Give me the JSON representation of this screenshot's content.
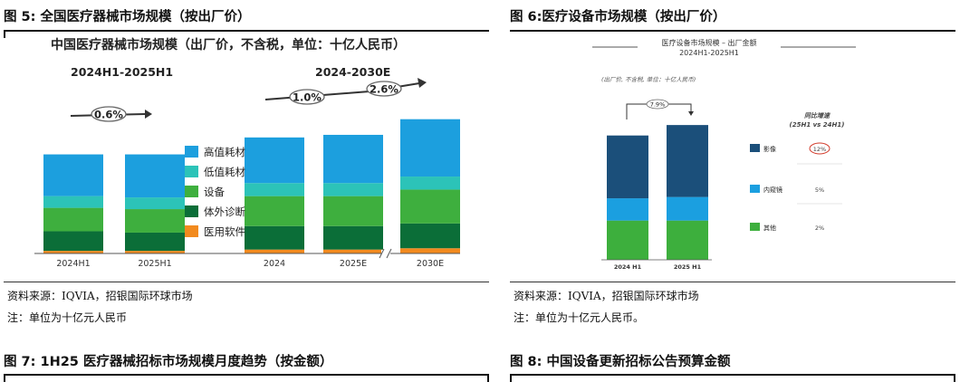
{
  "fig5": {
    "title": "图 5: 全国医疗器械市场规模（按出厂价）",
    "chart_title": "中国医疗器械市场规模（出厂价，不含税，单位：十亿人民币）",
    "subtitle_left": "2024H1-2025H1",
    "subtitle_right": "2024-2030E",
    "growth_labels": [
      "0.6%",
      "1.0%",
      "2.6%"
    ],
    "source": "资料来源：IQVIA，招银国际环球市场",
    "note": "注：单位为十亿元人民币"
  },
  "fig6": {
    "title": "图 6:医疗设备市场规模（按出厂价）",
    "chart_title_1": "医疗设备市场规模 – 出厂金额",
    "chart_title_2": "2024H1-2025H1",
    "unit_note": "(出厂价, 不含税, 单位：十亿人民币)",
    "growth_label": "7.9%",
    "growth_header_1": "同比增速",
    "growth_header_2": "(25H1 vs 24H1)",
    "source": "资料来源：IQVIA，招银国际环球市场",
    "note": "注：单位为十亿元人民币。"
  },
  "fig7": {
    "title": "图 7: 1H25 医疗器械招标市场规模月度趋势（按金额）"
  },
  "fig8": {
    "title": "图 8: 中国设备更新招标公告预算金额"
  },
  "chart_data": [
    {
      "type": "bar",
      "stacked": true,
      "categories": [
        "2024H1",
        "2025H1",
        "2024",
        "2025E",
        "2030E"
      ],
      "series": [
        {
          "name": "医用软件",
          "color": "#F28A1E",
          "values": [
            2,
            2,
            3,
            3,
            4
          ]
        },
        {
          "name": "体外诊断",
          "color": "#0B6E38",
          "values": [
            15,
            14,
            18,
            18,
            19
          ]
        },
        {
          "name": "设备",
          "color": "#3EAF3E",
          "values": [
            18,
            18,
            23,
            23,
            26
          ]
        },
        {
          "name": "低值耗材",
          "color": "#2CC3B8",
          "values": [
            9,
            9,
            10,
            10,
            10
          ]
        },
        {
          "name": "高值耗材",
          "color": "#1C9FDE",
          "values": [
            32,
            33,
            35,
            37,
            44
          ]
        }
      ],
      "ylim": [
        0,
        125
      ],
      "legend": "right-center"
    },
    {
      "type": "bar",
      "stacked": true,
      "categories": [
        "2024 H1",
        "2025 H1"
      ],
      "series": [
        {
          "name": "其他",
          "color": "#3DAF3D",
          "values": [
            30,
            30
          ],
          "growth": "2%"
        },
        {
          "name": "内窥镜",
          "color": "#1B9FE0",
          "values": [
            17,
            18
          ],
          "growth": "5%"
        },
        {
          "name": "影像",
          "color": "#1B4F7A",
          "values": [
            48,
            55
          ],
          "growth": "12%"
        }
      ],
      "ylim": [
        0,
        110
      ],
      "legend": "right"
    }
  ]
}
